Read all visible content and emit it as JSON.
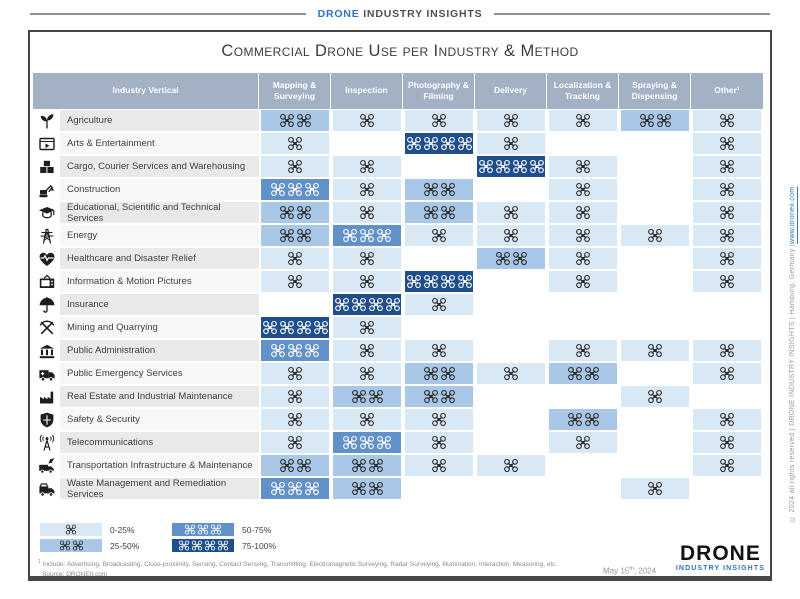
{
  "brand_bar": {
    "blue": "DRONE",
    "rest": "INDUSTRY INSIGHTS"
  },
  "title": "Commercial Drone Use per Industry & Method",
  "chart_data": {
    "type": "heatmap",
    "title": "Commercial Drone Use per Industry & Method",
    "corner_header": "Industry Vertical",
    "columns": [
      "Mapping & Surveying",
      "Inspection",
      "Photography & Filming",
      "Delivery",
      "Localization & Tracking",
      "Spraying & Dispensing",
      "Other¹"
    ],
    "rows": [
      {
        "industry": "Agriculture",
        "icon": "seedling-icon",
        "values": [
          2,
          1,
          1,
          1,
          1,
          2,
          1
        ]
      },
      {
        "industry": "Arts & Entertainment",
        "icon": "film-screen-icon",
        "values": [
          1,
          0,
          4,
          1,
          0,
          0,
          1
        ]
      },
      {
        "industry": "Cargo, Courier Services and Warehousing",
        "icon": "packages-icon",
        "values": [
          1,
          1,
          0,
          4,
          1,
          0,
          1
        ]
      },
      {
        "industry": "Construction",
        "icon": "excavator-icon",
        "values": [
          3,
          1,
          2,
          0,
          1,
          0,
          1
        ]
      },
      {
        "industry": "Educational, Scientific and Technical Services",
        "icon": "graduation-cap-icon",
        "values": [
          2,
          1,
          2,
          1,
          1,
          0,
          1
        ]
      },
      {
        "industry": "Energy",
        "icon": "power-tower-icon",
        "values": [
          2,
          3,
          1,
          1,
          1,
          1,
          1
        ]
      },
      {
        "industry": "Healthcare and Disaster Relief",
        "icon": "heart-pulse-icon",
        "values": [
          1,
          1,
          0,
          2,
          1,
          0,
          1
        ]
      },
      {
        "industry": "Information & Motion Pictures",
        "icon": "tv-icon",
        "values": [
          1,
          1,
          4,
          0,
          1,
          0,
          1
        ]
      },
      {
        "industry": "Insurance",
        "icon": "umbrella-icon",
        "values": [
          0,
          4,
          1,
          0,
          0,
          0,
          0
        ]
      },
      {
        "industry": "Mining and Quarrying",
        "icon": "pickaxes-icon",
        "values": [
          4,
          1,
          0,
          0,
          0,
          0,
          0
        ]
      },
      {
        "industry": "Public Administration",
        "icon": "government-building-icon",
        "values": [
          3,
          1,
          1,
          0,
          1,
          1,
          1
        ]
      },
      {
        "industry": "Public Emergency Services",
        "icon": "ambulance-icon",
        "values": [
          1,
          1,
          2,
          1,
          2,
          0,
          1
        ]
      },
      {
        "industry": "Real Estate and Industrial Maintenance",
        "icon": "factory-icon",
        "values": [
          1,
          2,
          2,
          0,
          0,
          1,
          0
        ]
      },
      {
        "industry": "Safety & Security",
        "icon": "shield-icon",
        "values": [
          1,
          1,
          1,
          0,
          2,
          0,
          1
        ]
      },
      {
        "industry": "Telecommunications",
        "icon": "antenna-tower-icon",
        "values": [
          1,
          3,
          1,
          0,
          1,
          0,
          1
        ]
      },
      {
        "industry": "Transportation Infrastructure & Maintenance",
        "icon": "truck-plane-icon",
        "values": [
          2,
          2,
          1,
          1,
          0,
          0,
          1
        ]
      },
      {
        "industry": "Waste Management and Remediation Services",
        "icon": "garbage-truck-icon",
        "values": [
          3,
          2,
          0,
          0,
          0,
          1,
          0
        ]
      }
    ],
    "legend": [
      {
        "level": 1,
        "label": "0-25%"
      },
      {
        "level": 3,
        "label": "50-75%"
      },
      {
        "level": 2,
        "label": "25-50%"
      },
      {
        "level": 4,
        "label": "75-100%"
      }
    ],
    "legend_position": "bottom-left",
    "colors": {
      "header_band": "#a3b1c4",
      "level_1": "#d9e8f5",
      "level_2": "#a9c7e6",
      "level_3": "#6191c9",
      "level_4": "#1f4e8c",
      "drone_dark": "#2d2d2d",
      "drone_light": "#ffffff"
    }
  },
  "footnote": {
    "mark": "1",
    "text": "Include: Advertising, Broadcasting, Close-proximity, Sensing, Contact Sensing, Transmitting, Electromagnetic Surveying, Radar Surveying, Illumination, Interaction, Measuring, etc.",
    "source": "Source: DRONEII.com"
  },
  "footer": {
    "date_prefix": "May 15",
    "date_sup": "th",
    "date_suffix": ", 2024",
    "logo_top": "DRONE",
    "logo_bottom": "INDUSTRY INSIGHTS"
  },
  "side_note": {
    "text": "© 2024 all rights reserved  |  DRONE INDUSTRY INSIGHTS  |  Hamburg, Germany  |  ",
    "link": "www.droneii.com"
  }
}
